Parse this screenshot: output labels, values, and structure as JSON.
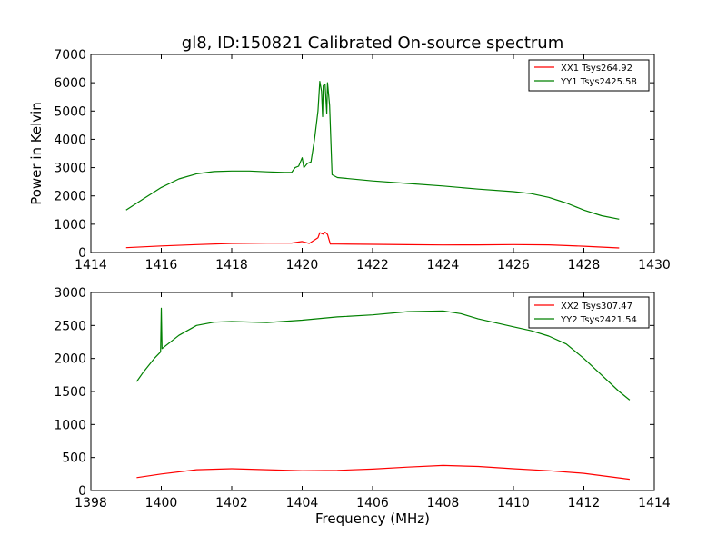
{
  "chart_data": [
    {
      "type": "line",
      "title": "gl8, ID:150821 Calibrated On-source spectrum",
      "xlabel": "",
      "ylabel": "Power in Kelvin",
      "xlim": [
        1414,
        1430
      ],
      "ylim": [
        0,
        7000
      ],
      "xticks": [
        1414,
        1416,
        1418,
        1420,
        1422,
        1424,
        1426,
        1428,
        1430
      ],
      "yticks": [
        0,
        1000,
        2000,
        3000,
        4000,
        5000,
        6000,
        7000
      ],
      "legend_position": "top-right",
      "series": [
        {
          "name": "XX1 Tsys264.92",
          "color": "#ff0000",
          "points": [
            [
              1415,
              170
            ],
            [
              1416,
              230
            ],
            [
              1417,
              280
            ],
            [
              1418,
              320
            ],
            [
              1419,
              330
            ],
            [
              1419.7,
              335
            ],
            [
              1420.0,
              390
            ],
            [
              1420.2,
              320
            ],
            [
              1420.45,
              520
            ],
            [
              1420.5,
              700
            ],
            [
              1420.6,
              650
            ],
            [
              1420.65,
              720
            ],
            [
              1420.72,
              640
            ],
            [
              1420.8,
              300
            ],
            [
              1421,
              300
            ],
            [
              1422,
              290
            ],
            [
              1423,
              275
            ],
            [
              1424,
              265
            ],
            [
              1425,
              270
            ],
            [
              1426,
              280
            ],
            [
              1427,
              270
            ],
            [
              1428,
              220
            ],
            [
              1429,
              160
            ]
          ]
        },
        {
          "name": "YY1 Tsys2425.58",
          "color": "#008000",
          "points": [
            [
              1415,
              1500
            ],
            [
              1415.5,
              1900
            ],
            [
              1416,
              2300
            ],
            [
              1416.5,
              2600
            ],
            [
              1417,
              2780
            ],
            [
              1417.5,
              2860
            ],
            [
              1418,
              2880
            ],
            [
              1418.5,
              2880
            ],
            [
              1419,
              2850
            ],
            [
              1419.5,
              2830
            ],
            [
              1419.7,
              2830
            ],
            [
              1419.8,
              3000
            ],
            [
              1419.9,
              3050
            ],
            [
              1420.0,
              3350
            ],
            [
              1420.05,
              3000
            ],
            [
              1420.15,
              3150
            ],
            [
              1420.25,
              3200
            ],
            [
              1420.35,
              4000
            ],
            [
              1420.45,
              5000
            ],
            [
              1420.5,
              6050
            ],
            [
              1420.55,
              5700
            ],
            [
              1420.58,
              4800
            ],
            [
              1420.6,
              5900
            ],
            [
              1420.65,
              5950
            ],
            [
              1420.7,
              4900
            ],
            [
              1420.72,
              6000
            ],
            [
              1420.78,
              5200
            ],
            [
              1420.85,
              2750
            ],
            [
              1421,
              2650
            ],
            [
              1422,
              2530
            ],
            [
              1423,
              2440
            ],
            [
              1424,
              2350
            ],
            [
              1425,
              2240
            ],
            [
              1426,
              2150
            ],
            [
              1426.5,
              2080
            ],
            [
              1427,
              1950
            ],
            [
              1427.5,
              1750
            ],
            [
              1428,
              1500
            ],
            [
              1428.5,
              1300
            ],
            [
              1429,
              1180
            ]
          ]
        }
      ]
    },
    {
      "type": "line",
      "title": "",
      "xlabel": "Frequency (MHz)",
      "ylabel": "",
      "xlim": [
        1398,
        1414
      ],
      "ylim": [
        0,
        3000
      ],
      "xticks": [
        1398,
        1400,
        1402,
        1404,
        1406,
        1408,
        1410,
        1412,
        1414
      ],
      "yticks": [
        0,
        500,
        1000,
        1500,
        2000,
        2500,
        3000
      ],
      "legend_position": "top-right",
      "series": [
        {
          "name": "XX2 Tsys307.47",
          "color": "#ff0000",
          "points": [
            [
              1399.3,
              195
            ],
            [
              1400,
              250
            ],
            [
              1401,
              315
            ],
            [
              1402,
              330
            ],
            [
              1403,
              315
            ],
            [
              1404,
              300
            ],
            [
              1405,
              305
            ],
            [
              1406,
              325
            ],
            [
              1407,
              355
            ],
            [
              1408,
              380
            ],
            [
              1409,
              365
            ],
            [
              1410,
              330
            ],
            [
              1411,
              300
            ],
            [
              1412,
              260
            ],
            [
              1413.3,
              170
            ]
          ]
        },
        {
          "name": "YY2 Tsys2421.54",
          "color": "#008000",
          "points": [
            [
              1399.3,
              1650
            ],
            [
              1399.5,
              1800
            ],
            [
              1399.8,
              2000
            ],
            [
              1399.98,
              2100
            ],
            [
              1400.0,
              2760
            ],
            [
              1400.02,
              2150
            ],
            [
              1400.5,
              2350
            ],
            [
              1401,
              2500
            ],
            [
              1401.5,
              2550
            ],
            [
              1402,
              2560
            ],
            [
              1403,
              2545
            ],
            [
              1404,
              2580
            ],
            [
              1405,
              2630
            ],
            [
              1406,
              2660
            ],
            [
              1407,
              2710
            ],
            [
              1408,
              2720
            ],
            [
              1408.5,
              2680
            ],
            [
              1409,
              2600
            ],
            [
              1410,
              2480
            ],
            [
              1410.5,
              2420
            ],
            [
              1411,
              2340
            ],
            [
              1411.5,
              2220
            ],
            [
              1412,
              2000
            ],
            [
              1412.5,
              1750
            ],
            [
              1413,
              1500
            ],
            [
              1413.3,
              1370
            ]
          ]
        }
      ]
    }
  ]
}
